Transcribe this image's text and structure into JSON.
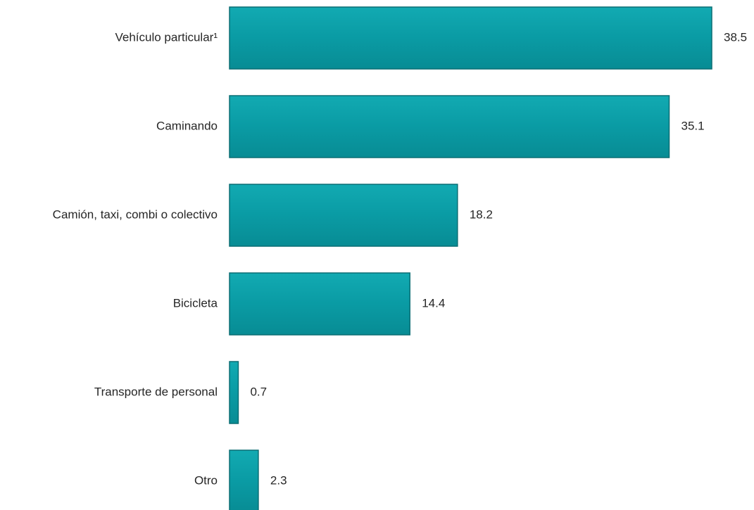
{
  "chart_data": {
    "type": "bar",
    "orientation": "horizontal",
    "title": "",
    "xlabel": "",
    "ylabel": "",
    "categories": [
      "Vehículo particular¹",
      "Caminando",
      "Camión, taxi, combi o colectivo",
      "Bicicleta",
      "Transporte de personal",
      "Otro"
    ],
    "values": [
      38.5,
      35.1,
      18.2,
      14.4,
      0.7,
      2.3
    ],
    "value_labels": [
      "38.5",
      "35.1",
      "18.2",
      "14.4",
      "0.7",
      "2.3"
    ],
    "xlim": [
      0,
      38.5
    ],
    "grid": false,
    "legend": "none",
    "bar_color": "#0a9ba4",
    "bar_edge_color": "#0b6e74"
  }
}
